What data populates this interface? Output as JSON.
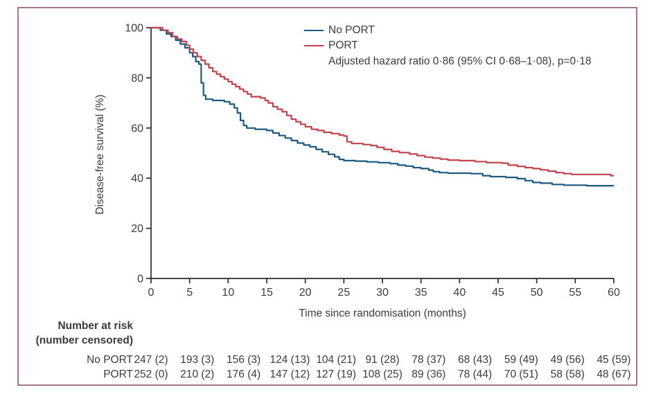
{
  "figure": {
    "frame_color": "#a5758a",
    "background_color": "#ffffff",
    "axis_color": "#2a2a2a",
    "text_color": "#3b3b3b"
  },
  "chart_data": {
    "type": "line",
    "subtype": "kaplan-meier-step",
    "title": "",
    "xlabel": "Time since randomisation (months)",
    "ylabel": "Disease-free survival (%)",
    "xlim": [
      0,
      60
    ],
    "ylim": [
      0,
      100
    ],
    "x_ticks": [
      0,
      5,
      10,
      15,
      20,
      25,
      30,
      35,
      40,
      45,
      50,
      55,
      60
    ],
    "y_ticks": [
      0,
      20,
      40,
      60,
      80,
      100
    ],
    "grid": false,
    "legend_position": "top-right-inside",
    "annotation": "Adjusted hazard ratio 0·86 (95% CI 0·68–1·08), p=0·18",
    "series": [
      {
        "name": "No PORT",
        "color": "#1b5a80",
        "points": [
          [
            0,
            100
          ],
          [
            1.2,
            99
          ],
          [
            2,
            97.5
          ],
          [
            2.6,
            96.5
          ],
          [
            3.2,
            95
          ],
          [
            3.8,
            93.5
          ],
          [
            4.4,
            92
          ],
          [
            5,
            90
          ],
          [
            5.4,
            88.5
          ],
          [
            5.8,
            86.5
          ],
          [
            6.2,
            85.5
          ],
          [
            6.5,
            78
          ],
          [
            6.8,
            73
          ],
          [
            7.1,
            71.5
          ],
          [
            8,
            71
          ],
          [
            9.5,
            70.5
          ],
          [
            10.2,
            69.5
          ],
          [
            10.8,
            68
          ],
          [
            11.2,
            66
          ],
          [
            11.6,
            63
          ],
          [
            12,
            61
          ],
          [
            12.4,
            60
          ],
          [
            13.5,
            59.5
          ],
          [
            15,
            59
          ],
          [
            15.8,
            58
          ],
          [
            16.6,
            57
          ],
          [
            17.4,
            56
          ],
          [
            18.2,
            55
          ],
          [
            19,
            54
          ],
          [
            19.8,
            53.2
          ],
          [
            20.6,
            52.5
          ],
          [
            21.4,
            51.5
          ],
          [
            22.2,
            50.5
          ],
          [
            23,
            49.5
          ],
          [
            23.8,
            48.5
          ],
          [
            24.4,
            47.5
          ],
          [
            25,
            47
          ],
          [
            26.5,
            46.8
          ],
          [
            28,
            46.5
          ],
          [
            29.5,
            46.2
          ],
          [
            31,
            45.8
          ],
          [
            32,
            45.2
          ],
          [
            33,
            44.8
          ],
          [
            34,
            44.2
          ],
          [
            35,
            43.8
          ],
          [
            36,
            43.2
          ],
          [
            36.6,
            42.6
          ],
          [
            37.4,
            42.2
          ],
          [
            38.5,
            42
          ],
          [
            41.5,
            41.8
          ],
          [
            43,
            41
          ],
          [
            44,
            40.6
          ],
          [
            46,
            40.3
          ],
          [
            47.5,
            39.8
          ],
          [
            48.5,
            39
          ],
          [
            49.5,
            38.3
          ],
          [
            50.5,
            38
          ],
          [
            52,
            37.5
          ],
          [
            53.5,
            37.2
          ],
          [
            56.5,
            37
          ],
          [
            60,
            37
          ]
        ]
      },
      {
        "name": "PORT",
        "color": "#c4414a",
        "points": [
          [
            0,
            100
          ],
          [
            1.5,
            99
          ],
          [
            2.2,
            98
          ],
          [
            2.8,
            96.5
          ],
          [
            3.4,
            95.5
          ],
          [
            4,
            94.5
          ],
          [
            4.6,
            93
          ],
          [
            5,
            91.5
          ],
          [
            5.5,
            90
          ],
          [
            6,
            88.5
          ],
          [
            6.5,
            87
          ],
          [
            7,
            85.5
          ],
          [
            7.5,
            84
          ],
          [
            8,
            82.5
          ],
          [
            8.5,
            81.5
          ],
          [
            9,
            80.5
          ],
          [
            9.5,
            79.5
          ],
          [
            10,
            78.5
          ],
          [
            10.5,
            77.5
          ],
          [
            11,
            76.5
          ],
          [
            11.5,
            75.5
          ],
          [
            12,
            74.5
          ],
          [
            12.5,
            73.5
          ],
          [
            13,
            72.5
          ],
          [
            14.2,
            72
          ],
          [
            14.8,
            71
          ],
          [
            15.2,
            70
          ],
          [
            15.8,
            68.5
          ],
          [
            16.4,
            67.5
          ],
          [
            17,
            66.5
          ],
          [
            17.6,
            65
          ],
          [
            18.2,
            63.5
          ],
          [
            18.8,
            62.5
          ],
          [
            19.4,
            61.5
          ],
          [
            20,
            60.5
          ],
          [
            20.8,
            59.5
          ],
          [
            21.6,
            59
          ],
          [
            22.4,
            58.3
          ],
          [
            23.4,
            57.8
          ],
          [
            24.4,
            57.2
          ],
          [
            25,
            56.8
          ],
          [
            25.4,
            54.5
          ],
          [
            26,
            53.8
          ],
          [
            27.5,
            53.4
          ],
          [
            28.5,
            53
          ],
          [
            29.3,
            52.3
          ],
          [
            30.2,
            51.5
          ],
          [
            31.2,
            50.7
          ],
          [
            32.2,
            50.2
          ],
          [
            33.5,
            49.6
          ],
          [
            34.5,
            49
          ],
          [
            35.5,
            48.4
          ],
          [
            36.5,
            48
          ],
          [
            37.5,
            47.6
          ],
          [
            38.5,
            47.2
          ],
          [
            40,
            47
          ],
          [
            42,
            46.6
          ],
          [
            43.5,
            46.2
          ],
          [
            45.5,
            46
          ],
          [
            46.3,
            45.2
          ],
          [
            47.5,
            44.7
          ],
          [
            48.5,
            44.2
          ],
          [
            49.5,
            43.8
          ],
          [
            50.5,
            43.3
          ],
          [
            51.5,
            42.8
          ],
          [
            52.5,
            42.2
          ],
          [
            53.5,
            41.8
          ],
          [
            54.5,
            41.5
          ],
          [
            59.4,
            41.5
          ],
          [
            59.6,
            41
          ],
          [
            60,
            41
          ]
        ]
      }
    ],
    "at_risk_table": {
      "header_line1": "Number at risk",
      "header_line2": "(number censored)",
      "times": [
        0,
        6,
        12,
        18,
        24,
        30,
        36,
        42,
        48,
        54,
        60
      ],
      "rows": [
        {
          "label": "No PORT",
          "values": [
            "247 (2)",
            "193 (3)",
            "156 (3)",
            "124 (13)",
            "104 (21)",
            "91 (28)",
            "78 (37)",
            "68 (43)",
            "59 (49)",
            "49 (56)",
            "45 (59)"
          ]
        },
        {
          "label": "PORT",
          "values": [
            "252 (0)",
            "210 (2)",
            "176 (4)",
            "147 (12)",
            "127 (19)",
            "108 (25)",
            "89 (36)",
            "78 (44)",
            "70 (51)",
            "58 (58)",
            "48 (67)"
          ]
        }
      ]
    }
  }
}
